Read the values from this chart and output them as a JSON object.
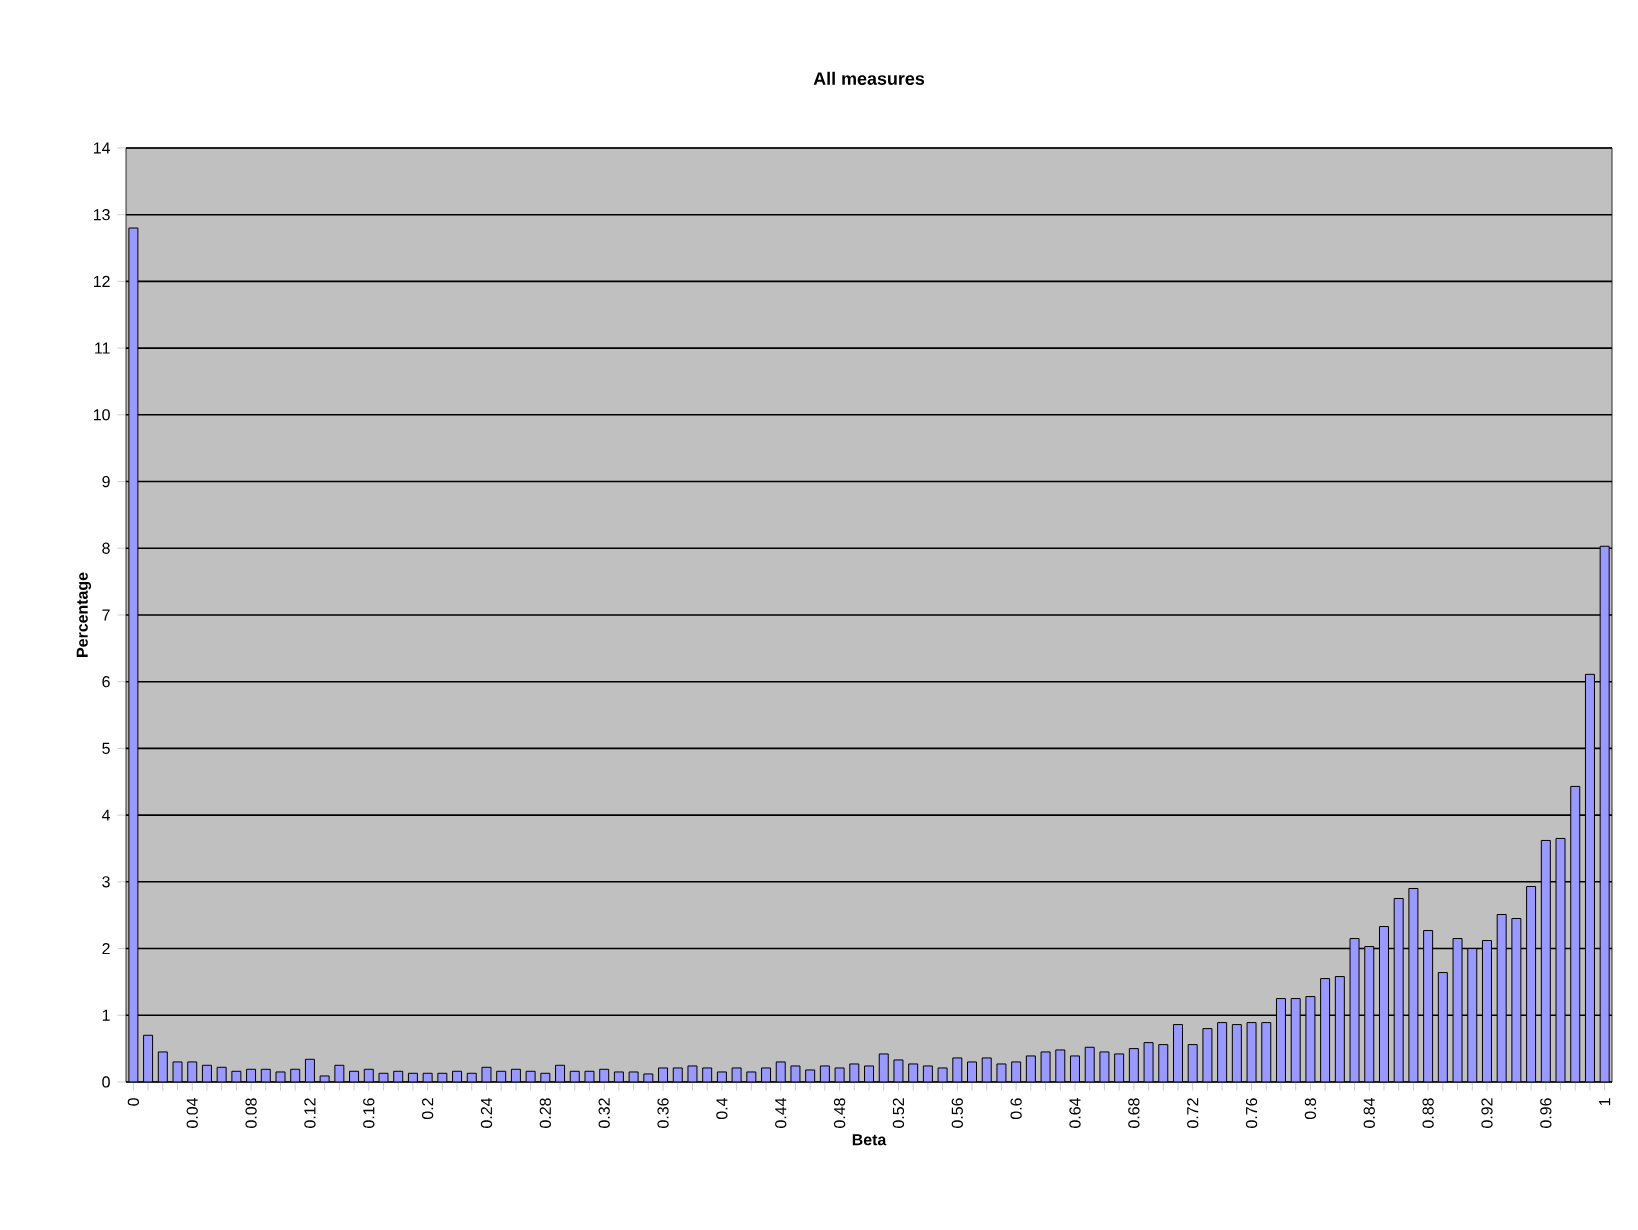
{
  "chart_data": {
    "type": "bar",
    "title": "All measures",
    "xlabel": "Beta",
    "ylabel": "Percentage",
    "categories": [
      "0",
      null,
      null,
      null,
      "0.04",
      null,
      null,
      null,
      "0.08",
      null,
      null,
      null,
      "0.12",
      null,
      null,
      null,
      "0.16",
      null,
      null,
      null,
      "0.2",
      null,
      null,
      null,
      "0.24",
      null,
      null,
      null,
      "0.28",
      null,
      null,
      null,
      "0.32",
      null,
      null,
      null,
      "0.36",
      null,
      null,
      null,
      "0.4",
      null,
      null,
      null,
      "0.44",
      null,
      null,
      null,
      "0.48",
      null,
      null,
      null,
      "0.52",
      null,
      null,
      null,
      "0.56",
      null,
      null,
      null,
      "0.6",
      null,
      null,
      null,
      "0.64",
      null,
      null,
      null,
      "0.68",
      null,
      null,
      null,
      "0.72",
      null,
      null,
      null,
      "0.76",
      null,
      null,
      null,
      "0.8",
      null,
      null,
      null,
      "0.84",
      null,
      null,
      null,
      "0.88",
      null,
      null,
      null,
      "0.92",
      null,
      null,
      null,
      "0.96",
      null,
      null,
      null,
      "1"
    ],
    "values": [
      12.8,
      0.7,
      0.45,
      0.3,
      0.3,
      0.25,
      0.22,
      0.16,
      0.19,
      0.19,
      0.15,
      0.19,
      0.34,
      0.09,
      0.25,
      0.16,
      0.19,
      0.13,
      0.16,
      0.13,
      0.13,
      0.13,
      0.16,
      0.13,
      0.22,
      0.16,
      0.19,
      0.16,
      0.13,
      0.25,
      0.16,
      0.16,
      0.19,
      0.15,
      0.15,
      0.12,
      0.21,
      0.21,
      0.24,
      0.21,
      0.15,
      0.21,
      0.15,
      0.21,
      0.3,
      0.24,
      0.18,
      0.24,
      0.21,
      0.27,
      0.24,
      0.42,
      0.33,
      0.27,
      0.24,
      0.21,
      0.36,
      0.3,
      0.36,
      0.27,
      0.3,
      0.39,
      0.45,
      0.48,
      0.39,
      0.52,
      0.45,
      0.42,
      0.5,
      0.59,
      0.56,
      0.86,
      0.56,
      0.8,
      0.89,
      0.86,
      0.89,
      0.89,
      1.25,
      1.25,
      1.28,
      1.55,
      1.58,
      2.15,
      2.03,
      2.33,
      2.75,
      2.9,
      2.27,
      1.64,
      2.15,
      2.0,
      2.12,
      2.51,
      2.45,
      2.93,
      3.62,
      3.65,
      4.43,
      6.11,
      8.03
    ],
    "color": "#9999ff",
    "ylim": [
      0,
      14
    ],
    "yticks": [
      0,
      1,
      2,
      3,
      4,
      5,
      6,
      7,
      8,
      9,
      10,
      11,
      12,
      13,
      14
    ],
    "grid": "y"
  }
}
